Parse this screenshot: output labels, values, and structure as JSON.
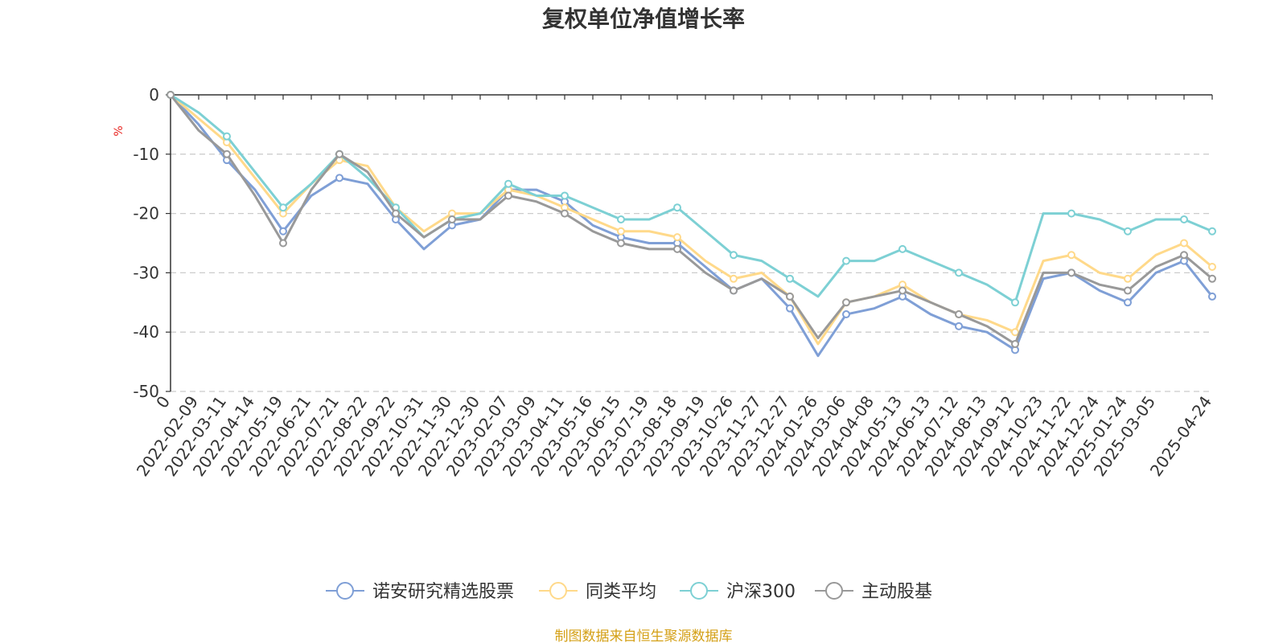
{
  "chart_data": {
    "type": "line",
    "title": "复权单位净值增长率",
    "ylabel": "%",
    "ylim": [
      -50,
      0
    ],
    "yticks": [
      0,
      -10,
      -20,
      -30,
      -40,
      -50
    ],
    "grid": true,
    "legend_position": "bottom-center",
    "x_tick_labels": [
      "0",
      "2022-02-09",
      "2022-03-11",
      "2022-04-14",
      "2022-05-19",
      "2022-06-21",
      "2022-07-21",
      "2022-08-22",
      "2022-09-22",
      "2022-10-31",
      "2022-11-30",
      "2022-12-30",
      "2023-02-07",
      "2023-03-09",
      "2023-04-11",
      "2023-05-16",
      "2023-06-15",
      "2023-07-19",
      "2023-08-18",
      "2023-09-19",
      "2023-10-26",
      "2023-11-27",
      "2023-12-27",
      "2024-01-26",
      "2024-03-06",
      "2024-04-08",
      "2024-05-13",
      "2024-06-13",
      "2024-07-12",
      "2024-08-13",
      "2024-09-12",
      "2024-10-23",
      "2024-11-22",
      "2024-12-24",
      "2025-01-24",
      "2025-03-05",
      "2025-04-24"
    ],
    "x_tick_label_positions": [
      0,
      1,
      2,
      3,
      4,
      5,
      6,
      7,
      8,
      9,
      10,
      11,
      12,
      13,
      14,
      15,
      16,
      17,
      18,
      19,
      20,
      21,
      22,
      23,
      24,
      25,
      26,
      27,
      28,
      29,
      30,
      31,
      32,
      33,
      34,
      35,
      37
    ],
    "x_max": 37,
    "series": [
      {
        "name": "诺安研究精选股票",
        "color": "#7f9fd6",
        "values": [
          0,
          -5,
          -11,
          -16,
          -23,
          -17,
          -14,
          -15,
          -21,
          -26,
          -22,
          -21,
          -16,
          -16,
          -18,
          -22,
          -24,
          -25,
          -25,
          -29,
          -33,
          -31,
          -36,
          -44,
          -37,
          -36,
          -34,
          -37,
          -39,
          -40,
          -43,
          -31,
          -30,
          -33,
          -35,
          -30,
          -28,
          -34
        ]
      },
      {
        "name": "同类平均",
        "color": "#ffd98a",
        "values": [
          0,
          -4,
          -8,
          -14,
          -20,
          -15,
          -11,
          -12,
          -19,
          -23,
          -20,
          -20,
          -16,
          -17,
          -19,
          -21,
          -23,
          -23,
          -24,
          -28,
          -31,
          -30,
          -34,
          -42,
          -35,
          -34,
          -32,
          -35,
          -37,
          -38,
          -40,
          -28,
          -27,
          -30,
          -31,
          -27,
          -25,
          -29
        ]
      },
      {
        "name": "沪深300",
        "color": "#7dd0d4",
        "values": [
          0,
          -3,
          -7,
          -13,
          -19,
          -15,
          -10,
          -14,
          -19,
          -24,
          -21,
          -20,
          -15,
          -17,
          -17,
          -19,
          -21,
          -21,
          -19,
          -23,
          -27,
          -28,
          -31,
          -34,
          -28,
          -28,
          -26,
          -28,
          -30,
          -32,
          -35,
          -20,
          -20,
          -21,
          -23,
          -21,
          -21,
          -23
        ]
      },
      {
        "name": "主动股基",
        "color": "#999999",
        "values": [
          0,
          -6,
          -10,
          -17,
          -25,
          -16,
          -10,
          -13,
          -20,
          -24,
          -21,
          -21,
          -17,
          -18,
          -20,
          -23,
          -25,
          -26,
          -26,
          -30,
          -33,
          -31,
          -34,
          -41,
          -35,
          -34,
          -33,
          -35,
          -37,
          -39,
          -42,
          -30,
          -30,
          -32,
          -33,
          -29,
          -27,
          -31
        ]
      }
    ]
  },
  "footer": "制图数据来自恒生聚源数据库"
}
